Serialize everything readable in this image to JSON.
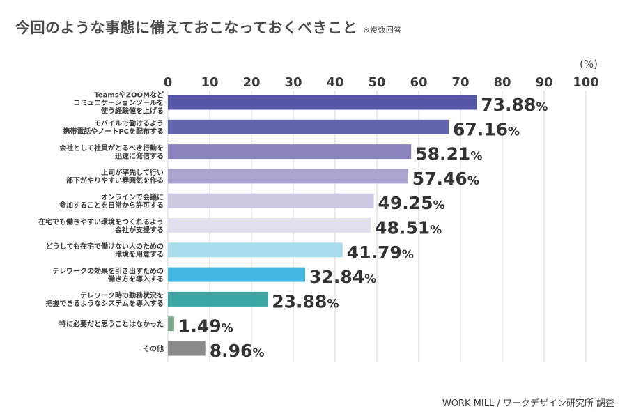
{
  "chart_data": {
    "type": "bar",
    "orientation": "horizontal",
    "title": "今回のような事態に備えておこなっておくべきこと",
    "note": "※複数回答",
    "unit_label": "(%)",
    "source": "WORK MILL / ワークデザイン研究所 調査",
    "xlim": [
      0,
      100
    ],
    "ticks": [
      0,
      10,
      20,
      30,
      40,
      50,
      60,
      70,
      80,
      90,
      100
    ],
    "grid": true,
    "value_suffix": "%",
    "categories": [
      [
        "TeamsやZOOMなど",
        "コミュニケーションツールを",
        "使う経験値を上げる"
      ],
      [
        "モバイルで働けるよう",
        "携帯電話やノートPCを配布する"
      ],
      [
        "会社として社員がとるべき行動を",
        "迅速に発信する"
      ],
      [
        "上司が率先して行い",
        "部下がやりやすい雰囲気を作る"
      ],
      [
        "オンラインで会議に",
        "参加することを日常から許可する"
      ],
      [
        "在宅でも働きやすい環境をつくれるよう",
        "会社が支援する"
      ],
      [
        "どうしても在宅で働けない人のための",
        "環境を用意する"
      ],
      [
        "テレワークの効果を引き出すための",
        "働き方を導入する"
      ],
      [
        "テレワーク時の勤務状況を",
        "把握できるようなシステムを導入する"
      ],
      [
        "特に必要だと思うことはなかった"
      ],
      [
        "その他"
      ]
    ],
    "values": [
      73.88,
      67.16,
      58.21,
      57.46,
      49.25,
      48.51,
      41.79,
      32.84,
      23.88,
      1.49,
      8.96
    ],
    "value_labels": [
      "73.88",
      "67.16",
      "58.21",
      "57.46",
      "49.25",
      "48.51",
      "41.79",
      "32.84",
      "23.88",
      "1.49",
      "8.96"
    ],
    "colors": [
      "#5555a5",
      "#6264ae",
      "#8a84be",
      "#aba6d0",
      "#cbc8e3",
      "#e2e0ef",
      "#a9dded",
      "#46b7e0",
      "#3ba8a4",
      "#7fa88e",
      "#8b8b8b"
    ]
  }
}
